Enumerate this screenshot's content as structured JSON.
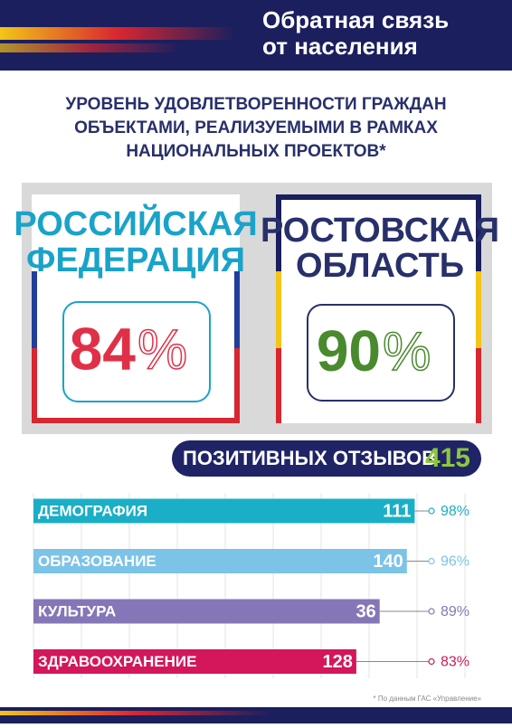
{
  "header": {
    "title_lines": [
      "Обратная связь",
      "от населения"
    ]
  },
  "subtitle_lines": [
    "УРОВЕНЬ УДОВЛЕТВОРЕННОСТИ ГРАЖДАН",
    "ОБЪЕКТАМИ, РЕАЛИЗУЕМЫМИ В РАМКАХ",
    "НАЦИОНАЛЬНЫХ ПРОЕКТОВ*"
  ],
  "panels": [
    {
      "name_lines": [
        "РОССИЙСКАЯ",
        "ФЕДЕРАЦИЯ"
      ],
      "value": 84,
      "unit": "%"
    },
    {
      "name_lines": [
        "РОСТОВСКАЯ",
        "ОБЛАСТЬ"
      ],
      "value": 90,
      "unit": "%"
    }
  ],
  "reviews": {
    "label": "ПОЗИТИВНЫХ ОТЗЫВОВ",
    "total": 415
  },
  "chart_data": {
    "type": "bar",
    "categories": [
      "ДЕМОГРАФИЯ",
      "ОБРАЗОВАНИЕ",
      "КУЛЬТУРА",
      "ЗДРАВООХРАНЕНИЕ"
    ],
    "values": [
      111,
      140,
      36,
      128
    ],
    "percents": [
      98,
      96,
      89,
      83
    ],
    "percent_labels": [
      "98%",
      "96%",
      "89%",
      "83%"
    ],
    "colors": [
      "#1aafc6",
      "#7cc3e8",
      "#8577b7",
      "#d3175a"
    ]
  },
  "footnote": "* По данным ГАС «Управление»"
}
